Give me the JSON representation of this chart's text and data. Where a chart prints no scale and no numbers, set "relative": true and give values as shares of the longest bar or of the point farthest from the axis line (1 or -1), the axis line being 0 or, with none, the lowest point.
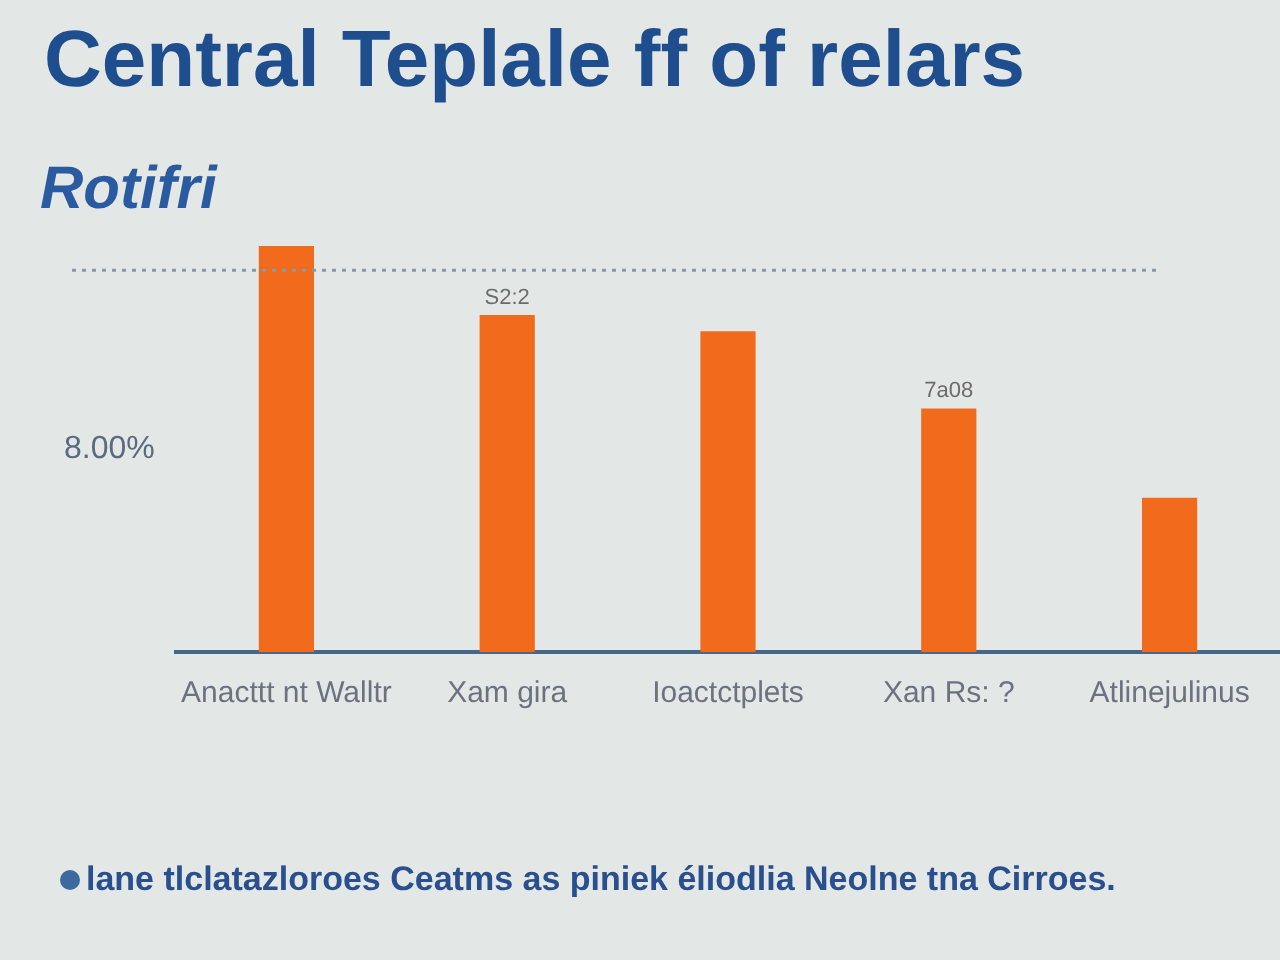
{
  "chart_data": {
    "type": "bar",
    "title": "Central Teplale ff of relars",
    "subtitle": "Rotifri",
    "categories": [
      "Anacttt nt Walltr",
      "Xam gira",
      "Ioactctplets",
      "Xan Rs: ?",
      "Atlinejulinus"
    ],
    "values": [
      1,
      0.83,
      0.79,
      0.6,
      0.38
    ],
    "color": "#f26a1b",
    "relative": true,
    "legend": false,
    "grid": false,
    "ref_lines": [
      {
        "axis": "y",
        "value": 0.94,
        "line_style": "dotted",
        "color": "#8a9aa5"
      }
    ],
    "annotations": [
      "8.00%",
      "lane tlclatazloroes  Ceatms as piniek éliodlia Neolne tna Cirroes.",
      {
        "text": "S2:2",
        "x": "Xam gira",
        "y": 0.83
      },
      {
        "text": "7a08",
        "x": "Xan Rs: ?",
        "y": 0.6
      }
    ]
  }
}
